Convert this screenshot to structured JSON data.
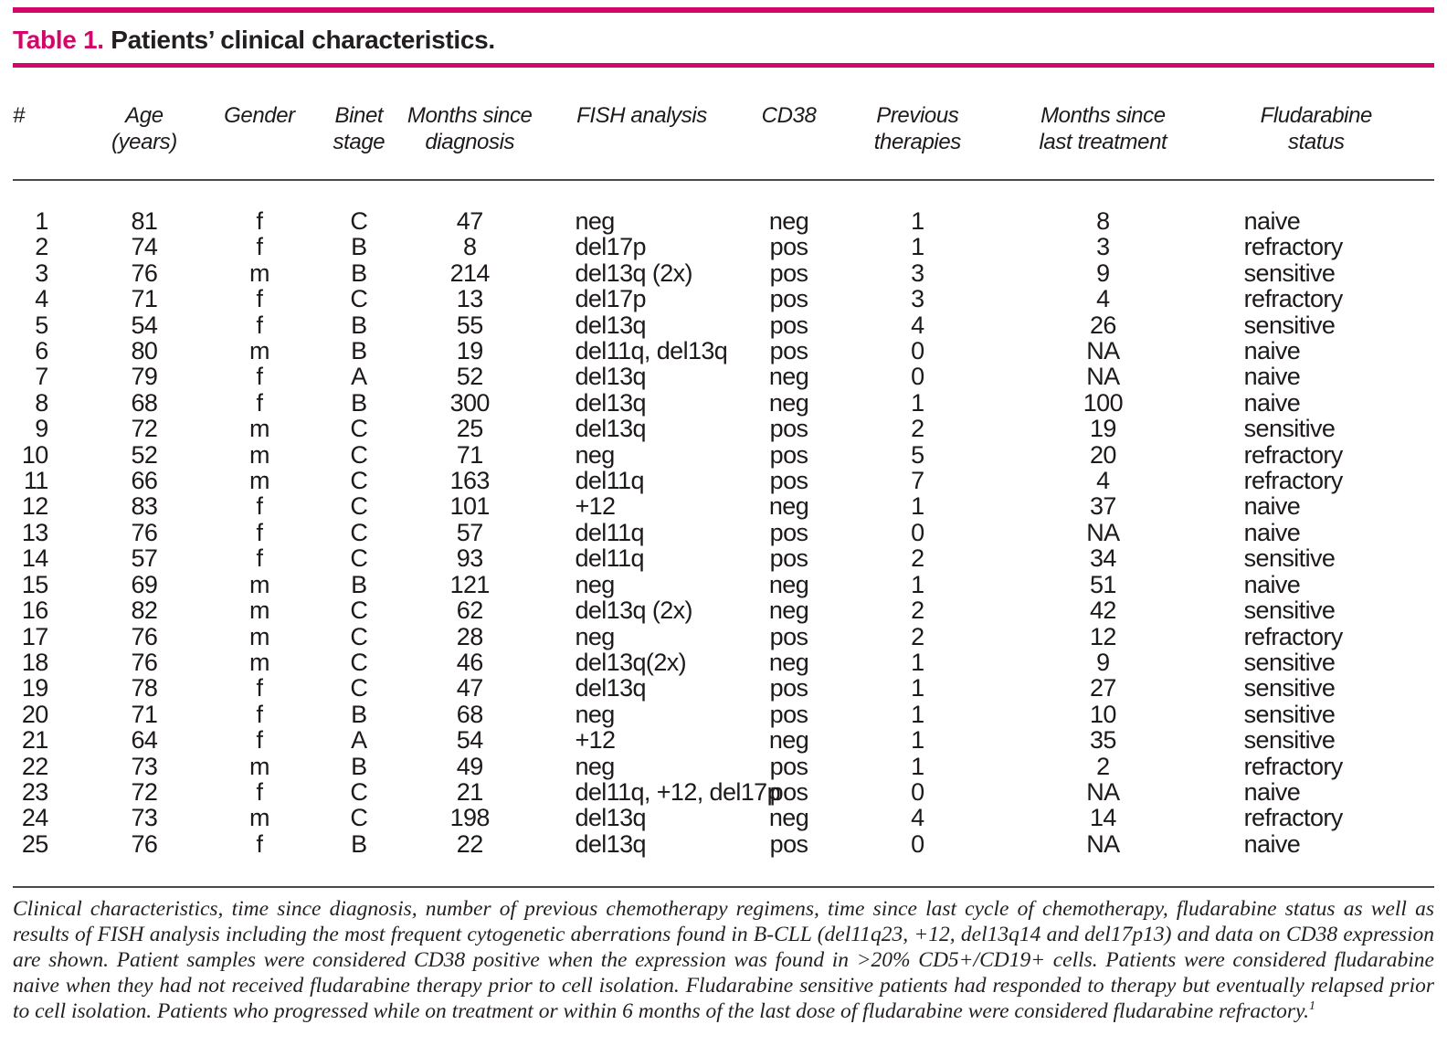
{
  "title": {
    "label": "Table 1.",
    "text": " Patients’ clinical characteristics."
  },
  "table": {
    "columns": [
      {
        "key": "num",
        "lines": [
          "#"
        ]
      },
      {
        "key": "age",
        "lines": [
          "Age",
          "(years)"
        ]
      },
      {
        "key": "gender",
        "lines": [
          "Gender"
        ]
      },
      {
        "key": "binet-stage",
        "lines": [
          "Binet",
          "stage"
        ]
      },
      {
        "key": "months-since-diagnosis",
        "lines": [
          "Months since",
          "diagnosis"
        ]
      },
      {
        "key": "fish-analysis",
        "lines": [
          "FISH analysis"
        ]
      },
      {
        "key": "cd38",
        "lines": [
          "CD38"
        ]
      },
      {
        "key": "previous-therapies",
        "lines": [
          "Previous",
          "therapies"
        ]
      },
      {
        "key": "months-since-last-treatment",
        "lines": [
          "Months since",
          "last treatment"
        ]
      },
      {
        "key": "fludarabine-status",
        "lines": [
          "Fludarabine",
          "status"
        ]
      }
    ],
    "rows": [
      [
        "1",
        "81",
        "f",
        "C",
        "47",
        "neg",
        "neg",
        "1",
        "8",
        "naive"
      ],
      [
        "2",
        "74",
        "f",
        "B",
        "8",
        "del17p",
        "pos",
        "1",
        "3",
        "refractory"
      ],
      [
        "3",
        "76",
        "m",
        "B",
        "214",
        "del13q (2x)",
        "pos",
        "3",
        "9",
        "sensitive"
      ],
      [
        "4",
        "71",
        "f",
        "C",
        "13",
        "del17p",
        "pos",
        "3",
        "4",
        "refractory"
      ],
      [
        "5",
        "54",
        "f",
        "B",
        "55",
        "del13q",
        "pos",
        "4",
        "26",
        "sensitive"
      ],
      [
        "6",
        "80",
        "m",
        "B",
        "19",
        "del11q, del13q",
        "pos",
        "0",
        "NA",
        "naive"
      ],
      [
        "7",
        "79",
        "f",
        "A",
        "52",
        "del13q",
        "neg",
        "0",
        "NA",
        "naive"
      ],
      [
        "8",
        "68",
        "f",
        "B",
        "300",
        "del13q",
        "neg",
        "1",
        "100",
        "naive"
      ],
      [
        "9",
        "72",
        "m",
        "C",
        "25",
        "del13q",
        "pos",
        "2",
        "19",
        "sensitive"
      ],
      [
        "10",
        "52",
        "m",
        "C",
        "71",
        "neg",
        "pos",
        "5",
        "20",
        "refractory"
      ],
      [
        "11",
        "66",
        "m",
        "C",
        "163",
        "del11q",
        "pos",
        "7",
        "4",
        "refractory"
      ],
      [
        "12",
        "83",
        "f",
        "C",
        "101",
        "+12",
        "neg",
        "1",
        "37",
        "naive"
      ],
      [
        "13",
        "76",
        "f",
        "C",
        "57",
        "del11q",
        "pos",
        "0",
        "NA",
        "naive"
      ],
      [
        "14",
        "57",
        "f",
        "C",
        "93",
        "del11q",
        "pos",
        "2",
        "34",
        "sensitive"
      ],
      [
        "15",
        "69",
        "m",
        "B",
        "121",
        "neg",
        "neg",
        "1",
        "51",
        "naive"
      ],
      [
        "16",
        "82",
        "m",
        "C",
        "62",
        "del13q (2x)",
        "neg",
        "2",
        "42",
        "sensitive"
      ],
      [
        "17",
        "76",
        "m",
        "C",
        "28",
        "neg",
        "pos",
        "2",
        "12",
        "refractory"
      ],
      [
        "18",
        "76",
        "m",
        "C",
        "46",
        "del13q(2x)",
        "neg",
        "1",
        "9",
        "sensitive"
      ],
      [
        "19",
        "78",
        "f",
        "C",
        "47",
        "del13q",
        "pos",
        "1",
        "27",
        "sensitive"
      ],
      [
        "20",
        "71",
        "f",
        "B",
        "68",
        "neg",
        "pos",
        "1",
        "10",
        "sensitive"
      ],
      [
        "21",
        "64",
        "f",
        "A",
        "54",
        "+12",
        "neg",
        "1",
        "35",
        "sensitive"
      ],
      [
        "22",
        "73",
        "m",
        "B",
        "49",
        "neg",
        "pos",
        "1",
        "2",
        "refractory"
      ],
      [
        "23",
        "72",
        "f",
        "C",
        "21",
        "del11q, +12, del17p",
        "pos",
        "0",
        "NA",
        "naive"
      ],
      [
        "24",
        "73",
        "m",
        "C",
        "198",
        "del13q",
        "neg",
        "4",
        "14",
        "refractory"
      ],
      [
        "25",
        "76",
        "f",
        "B",
        "22",
        "del13q",
        "pos",
        "0",
        "NA",
        "naive"
      ]
    ]
  },
  "footnote": {
    "text": "Clinical characteristics, time since diagnosis, number of previous chemotherapy regimens, time since last cycle of chemotherapy, fludarabine status as well as results of FISH analysis including the most frequent cytogenetic aberrations found in B-CLL (del11q23, +12, del13q14 and del17p13) and data on CD38 expression are shown. Patient samples were considered CD38 positive when the expression was found in >20% CD5+/CD19+ cells. Patients were considered fludarabine naive when they had not received fludarabine therapy prior to cell isolation. Fludarabine sensitive patients had responded to therapy but eventually relapsed prior to cell isolation. Patients who progressed while on treatment or within 6 months of the last dose of fludarabine were considered fludarabine refractory.",
    "marker": "1"
  },
  "colors": {
    "accent": "#d4066a",
    "text": "#231f20"
  }
}
